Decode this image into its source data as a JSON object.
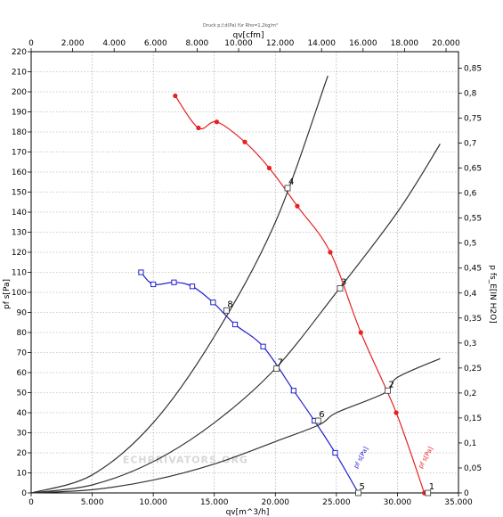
{
  "chart_data": {
    "type": "line",
    "title": "Druck p,f,d(Pa) für Rho=1,2kg/m³",
    "xlabel": "qv[m^3/h]",
    "x2label": "qv[cfm]",
    "ylabel": "pf s[Pa]",
    "y2label": "p fs_E[IN H2O]",
    "xlim": [
      0,
      35000
    ],
    "x2lim": [
      0,
      20600
    ],
    "ylim": [
      0,
      220
    ],
    "y2lim": [
      0,
      0.883
    ],
    "x_ticks": [
      "0",
      "5.000",
      "10.000",
      "15.000",
      "20.000",
      "25.000",
      "30.000",
      "35.000"
    ],
    "x_tick_values": [
      0,
      5000,
      10000,
      15000,
      20000,
      25000,
      30000,
      35000
    ],
    "x2_ticks": [
      "0",
      "2.000",
      "4.000",
      "6.000",
      "8.000",
      "10.000",
      "12.000",
      "14.000",
      "16.000",
      "18.000",
      "20.000"
    ],
    "x2_tick_values": [
      0,
      2000,
      4000,
      6000,
      8000,
      10000,
      12000,
      14000,
      16000,
      18000,
      20000
    ],
    "y_ticks": [
      "0",
      "10",
      "20",
      "30",
      "40",
      "50",
      "60",
      "70",
      "80",
      "90",
      "100",
      "110",
      "120",
      "130",
      "140",
      "150",
      "160",
      "170",
      "180",
      "190",
      "200",
      "210",
      "220"
    ],
    "y_tick_values": [
      0,
      10,
      20,
      30,
      40,
      50,
      60,
      70,
      80,
      90,
      100,
      110,
      120,
      130,
      140,
      150,
      160,
      170,
      180,
      190,
      200,
      210,
      220
    ],
    "y2_ticks": [
      "0",
      "0,05",
      "0,1",
      "0,15",
      "0,2",
      "0,25",
      "0,3",
      "0,35",
      "0,4",
      "0,45",
      "0,5",
      "0,55",
      "0,6",
      "0,65",
      "0,7",
      "0,75",
      "0,8",
      "0,85"
    ],
    "y2_tick_values": [
      0,
      0.05,
      0.1,
      0.15,
      0.2,
      0.25,
      0.3,
      0.35,
      0.4,
      0.45,
      0.5,
      0.55,
      0.6,
      0.65,
      0.7,
      0.75,
      0.8,
      0.85
    ],
    "grid": true,
    "series": [
      {
        "name": "pf s[Pa]",
        "color": "#e52222",
        "marker": "circle",
        "x": [
          11800,
          13700,
          15200,
          17500,
          19500,
          21800,
          24500,
          27000,
          29900,
          32200
        ],
        "y": [
          198,
          182,
          185,
          175,
          162,
          143,
          120,
          80,
          40,
          0
        ]
      },
      {
        "name": "pf s[Pa]",
        "color": "#2222cc",
        "marker": "square",
        "x": [
          9000,
          10000,
          11700,
          13200,
          14900,
          16700,
          19000,
          21500,
          23200,
          24900,
          26800
        ],
        "y": [
          110,
          104,
          105,
          103,
          95,
          84,
          73,
          51,
          36,
          20,
          0
        ]
      },
      {
        "name": "system-curve-1",
        "color": "#333333",
        "marker": "none",
        "x": [
          0,
          5000,
          10000,
          15000,
          20000,
          23600,
          25000,
          29000,
          30000,
          33500
        ],
        "y": [
          0,
          1.6,
          6.4,
          14.4,
          25.6,
          34,
          40,
          50,
          57.6,
          67
        ]
      },
      {
        "name": "system-curve-2",
        "color": "#333333",
        "marker": "none",
        "x": [
          0,
          5000,
          10000,
          15000,
          20000,
          25000,
          30000,
          33500
        ],
        "y": [
          0,
          4,
          15.6,
          35,
          62,
          100,
          140,
          174
        ]
      },
      {
        "name": "system-curve-3",
        "color": "#333333",
        "marker": "none",
        "x": [
          0,
          5000,
          10000,
          15000,
          20000,
          24300
        ],
        "y": [
          0,
          9,
          35,
          78,
          135,
          208
        ]
      }
    ],
    "point_labels": [
      {
        "text": "1",
        "x": 32500,
        "y": 0
      },
      {
        "text": "2",
        "x": 29200,
        "y": 51
      },
      {
        "text": "3",
        "x": 25300,
        "y": 102
      },
      {
        "text": "4",
        "x": 21000,
        "y": 152
      },
      {
        "text": "5",
        "x": 26800,
        "y": 0
      },
      {
        "text": "6",
        "x": 23500,
        "y": 36
      },
      {
        "text": "7",
        "x": 20100,
        "y": 62
      },
      {
        "text": "8",
        "x": 16000,
        "y": 91
      }
    ],
    "series_tags": [
      {
        "text": "pf s[Pa]",
        "color": "#e52222",
        "x": 32000,
        "y": 12
      },
      {
        "text": "pf s[Pa]",
        "color": "#2222cc",
        "x": 26700,
        "y": 12
      }
    ],
    "watermark": "ECHPRIVATORS.ORG"
  }
}
